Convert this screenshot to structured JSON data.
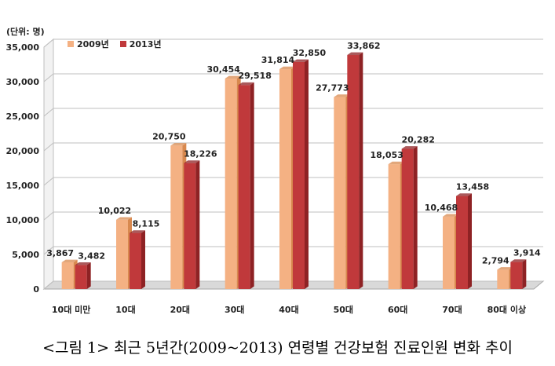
{
  "unit_label": "(단위: 명)",
  "caption": "<그림 1> 최근 5년간(2009~2013) 연령별 건강보험 진료인원 변화 추이",
  "colors": {
    "s2009": "#f4b183",
    "s2009_dark": "#d8894f",
    "s2013": "#c0393b",
    "s2013_dark": "#8e2224",
    "grid": "#bfbfbf"
  },
  "chart_data": {
    "type": "bar",
    "categories": [
      "10대 미만",
      "10대",
      "20대",
      "30대",
      "40대",
      "50대",
      "60대",
      "70대",
      "80대 이상"
    ],
    "series": [
      {
        "name": "2009년",
        "values": [
          3867,
          10022,
          20750,
          30454,
          31814,
          27773,
          18053,
          10468,
          2794
        ]
      },
      {
        "name": "2013년",
        "values": [
          3482,
          8115,
          18226,
          29518,
          32850,
          33862,
          20282,
          13458,
          3914
        ]
      }
    ],
    "value_labels": [
      [
        "3,867",
        "10,022",
        "20,750",
        "30,454",
        "31,814",
        "27,773",
        "18,053",
        "10,468",
        "2,794"
      ],
      [
        "3,482",
        "8,115",
        "18,226",
        "29,518",
        "32,850",
        "33,862",
        "20,282",
        "13,458",
        "3,914"
      ]
    ],
    "yticks": [
      0,
      5000,
      10000,
      15000,
      20000,
      25000,
      30000,
      35000
    ],
    "ytick_labels": [
      "0",
      "5,000",
      "10,000",
      "15,000",
      "20,000",
      "25,000",
      "30,000",
      "35,000"
    ],
    "ylim": [
      0,
      35000
    ],
    "grid": true,
    "legend": "top-left"
  }
}
